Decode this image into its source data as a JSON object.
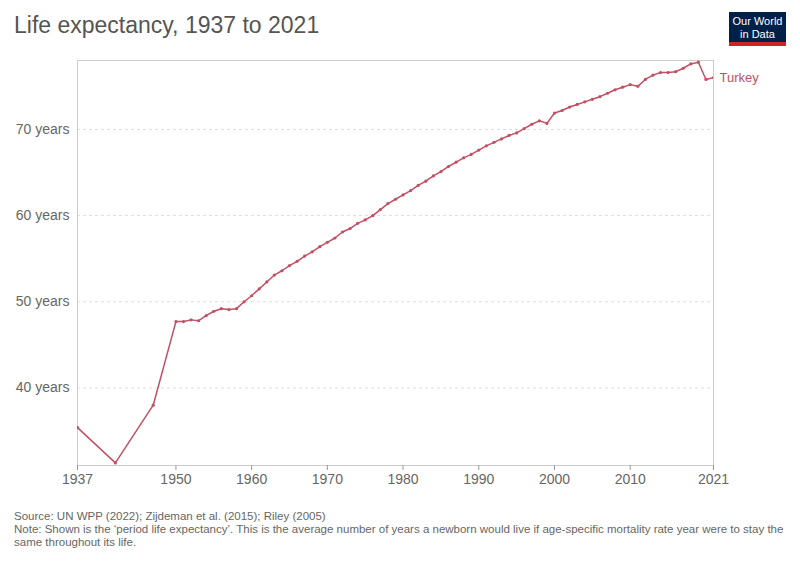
{
  "chart_data": {
    "type": "line",
    "title": "Life expectancy, 1937 to 2021",
    "logo": "Our World in Data",
    "source": "Source: UN WPP (2022); Zijdeman et al. (2015); Riley (2005)",
    "note": "Note: Shown is the ‘period life expectancy’. This is the average number of years a newborn would live if age-specific mortality rate year were to stay the same throughout its life.",
    "x": [
      1937,
      1942,
      1947,
      1950,
      1951,
      1952,
      1953,
      1954,
      1955,
      1956,
      1957,
      1958,
      1959,
      1960,
      1961,
      1962,
      1963,
      1964,
      1965,
      1966,
      1967,
      1968,
      1969,
      1970,
      1971,
      1972,
      1973,
      1974,
      1975,
      1976,
      1977,
      1978,
      1979,
      1980,
      1981,
      1982,
      1983,
      1984,
      1985,
      1986,
      1987,
      1988,
      1989,
      1990,
      1991,
      1992,
      1993,
      1994,
      1995,
      1996,
      1997,
      1998,
      1999,
      2000,
      2001,
      2002,
      2003,
      2004,
      2005,
      2006,
      2007,
      2008,
      2009,
      2010,
      2011,
      2012,
      2013,
      2014,
      2015,
      2016,
      2017,
      2018,
      2019,
      2020,
      2021
    ],
    "series": [
      {
        "name": "Turkey",
        "color": "#c15065",
        "marker": "circle",
        "values": [
          35.4,
          31.3,
          38.0,
          47.7,
          47.7,
          47.9,
          47.8,
          48.4,
          48.9,
          49.2,
          49.1,
          49.2,
          50.0,
          50.7,
          51.5,
          52.3,
          53.1,
          53.6,
          54.2,
          54.7,
          55.3,
          55.8,
          56.4,
          56.9,
          57.4,
          58.1,
          58.5,
          59.1,
          59.5,
          60.0,
          60.7,
          61.4,
          61.9,
          62.4,
          62.9,
          63.5,
          64.0,
          64.6,
          65.1,
          65.7,
          66.2,
          66.7,
          67.1,
          67.6,
          68.1,
          68.5,
          68.9,
          69.3,
          69.6,
          70.1,
          70.6,
          71.0,
          70.7,
          71.9,
          72.2,
          72.6,
          72.9,
          73.2,
          73.5,
          73.8,
          74.2,
          74.6,
          74.9,
          75.2,
          75.0,
          75.8,
          76.3,
          76.6,
          76.6,
          76.7,
          77.1,
          77.6,
          77.8,
          75.8,
          76.0
        ]
      }
    ],
    "xlim": [
      1937,
      2021
    ],
    "xticks": [
      1937,
      1950,
      1960,
      1970,
      1980,
      1990,
      2000,
      2010,
      2021
    ],
    "ylim": [
      31,
      78
    ],
    "yticks": [
      {
        "value": 40,
        "label": "40 years"
      },
      {
        "value": 50,
        "label": "50 years"
      },
      {
        "value": 60,
        "label": "60 years"
      },
      {
        "value": 70,
        "label": "70 years"
      }
    ],
    "grid": true
  }
}
